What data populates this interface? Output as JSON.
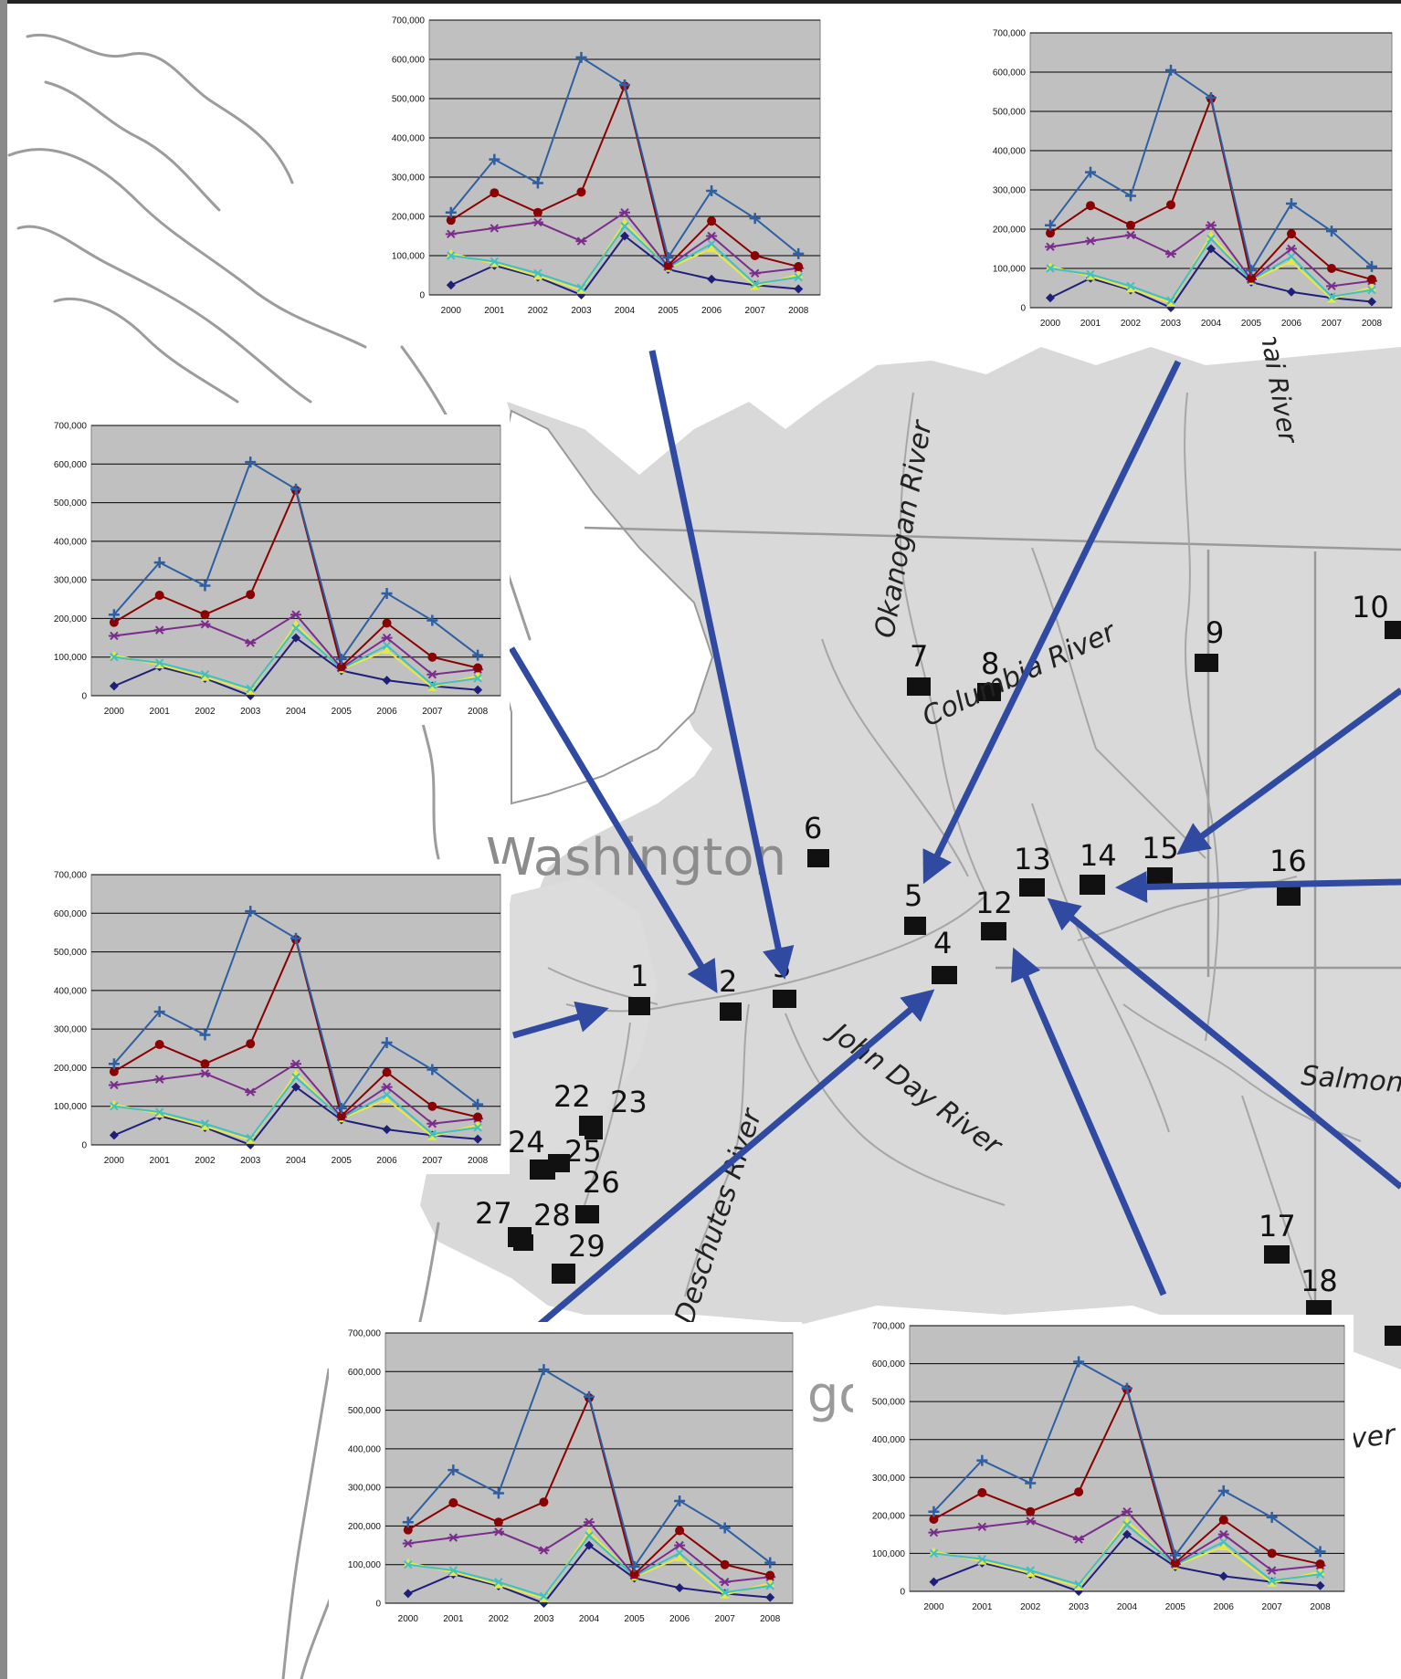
{
  "map": {
    "state_label": "Washington",
    "rivers": [
      "Okanogan River",
      "Columbia River",
      "John Day River",
      "Deschutes River",
      "Salmon River",
      "nai River"
    ],
    "partial_labels": [
      "go",
      "ver"
    ],
    "site_numbers": [
      "1",
      "2",
      "3",
      "4",
      "5",
      "6",
      "7",
      "8",
      "9",
      "10",
      "12",
      "13",
      "14",
      "15",
      "16",
      "17",
      "18",
      "22",
      "23",
      "24",
      "25",
      "26",
      "27",
      "28",
      "29"
    ],
    "colors": {
      "land": "#d9d9d9",
      "water": "#ffffff",
      "coast": "#8c8c8c",
      "arrow": "#2f4aa0",
      "marker": "#111111"
    }
  },
  "chart_template": {
    "type": "line",
    "categories": [
      "2000",
      "2001",
      "2002",
      "2003",
      "2004",
      "2005",
      "2006",
      "2007",
      "2008"
    ],
    "y_ticks": [
      "0",
      "100,000",
      "200,000",
      "300,000",
      "400,000",
      "500,000",
      "600,000",
      "700,000"
    ],
    "ylim": [
      0,
      700000
    ],
    "grid": true,
    "plot_background": "#c0c0c0",
    "series": [
      {
        "color": "#2e5fa3",
        "marker": "plus",
        "values": [
          210000,
          345000,
          285000,
          605000,
          535000,
          95000,
          265000,
          195000,
          105000
        ]
      },
      {
        "color": "#8b0000",
        "marker": "circle",
        "values": [
          190000,
          260000,
          210000,
          262000,
          532000,
          75000,
          188000,
          100000,
          72000
        ]
      },
      {
        "color": "#7b2d8b",
        "marker": "star",
        "values": [
          155000,
          170000,
          185000,
          137000,
          210000,
          72000,
          150000,
          55000,
          68000
        ]
      },
      {
        "color": "#40c0c0",
        "marker": "x",
        "values": [
          100000,
          85000,
          55000,
          18000,
          175000,
          70000,
          130000,
          28000,
          45000
        ]
      },
      {
        "color": "#e8e840",
        "marker": "triangle",
        "values": [
          105000,
          80000,
          48000,
          12000,
          185000,
          68000,
          118000,
          22000,
          52000
        ]
      },
      {
        "color": "#1f1f7a",
        "marker": "diamond",
        "values": [
          25000,
          75000,
          45000,
          0,
          150000,
          65000,
          40000,
          25000,
          15000
        ]
      }
    ]
  },
  "chart_data": [
    {
      "type": "line",
      "categories": [
        "2000",
        "2001",
        "2002",
        "2003",
        "2004",
        "2005",
        "2006",
        "2007",
        "2008"
      ],
      "ylim": [
        0,
        700000
      ],
      "series": [
        {
          "values": [
            210000,
            345000,
            285000,
            605000,
            535000,
            95000,
            265000,
            195000,
            105000
          ]
        },
        {
          "values": [
            190000,
            260000,
            210000,
            262000,
            532000,
            75000,
            188000,
            100000,
            72000
          ]
        },
        {
          "values": [
            155000,
            170000,
            185000,
            137000,
            210000,
            72000,
            150000,
            55000,
            68000
          ]
        },
        {
          "values": [
            100000,
            85000,
            55000,
            18000,
            175000,
            70000,
            130000,
            28000,
            45000
          ]
        },
        {
          "values": [
            105000,
            80000,
            48000,
            12000,
            185000,
            68000,
            118000,
            22000,
            52000
          ]
        },
        {
          "values": [
            25000,
            75000,
            45000,
            0,
            150000,
            65000,
            40000,
            25000,
            15000
          ]
        }
      ]
    },
    {
      "type": "line",
      "categories": [
        "2000",
        "2001",
        "2002",
        "2003",
        "2004",
        "2005",
        "2006",
        "2007",
        "2008"
      ],
      "ylim": [
        0,
        700000
      ],
      "series": [
        {
          "values": [
            210000,
            345000,
            285000,
            605000,
            535000,
            95000,
            265000,
            195000,
            105000
          ]
        },
        {
          "values": [
            190000,
            260000,
            210000,
            262000,
            532000,
            75000,
            188000,
            100000,
            72000
          ]
        },
        {
          "values": [
            155000,
            170000,
            185000,
            137000,
            210000,
            72000,
            150000,
            55000,
            68000
          ]
        },
        {
          "values": [
            100000,
            85000,
            55000,
            18000,
            175000,
            70000,
            130000,
            28000,
            45000
          ]
        },
        {
          "values": [
            105000,
            80000,
            48000,
            12000,
            185000,
            68000,
            118000,
            22000,
            52000
          ]
        },
        {
          "values": [
            25000,
            75000,
            45000,
            0,
            150000,
            65000,
            40000,
            25000,
            15000
          ]
        }
      ]
    },
    {
      "type": "line",
      "categories": [
        "2000",
        "2001",
        "2002",
        "2003",
        "2004",
        "2005",
        "2006",
        "2007",
        "2008"
      ],
      "ylim": [
        0,
        700000
      ],
      "series": [
        {
          "values": [
            210000,
            345000,
            285000,
            605000,
            535000,
            95000,
            265000,
            195000,
            105000
          ]
        },
        {
          "values": [
            190000,
            260000,
            210000,
            262000,
            532000,
            75000,
            188000,
            100000,
            72000
          ]
        },
        {
          "values": [
            155000,
            170000,
            185000,
            137000,
            210000,
            72000,
            150000,
            55000,
            68000
          ]
        },
        {
          "values": [
            100000,
            85000,
            55000,
            18000,
            175000,
            70000,
            130000,
            28000,
            45000
          ]
        },
        {
          "values": [
            105000,
            80000,
            48000,
            12000,
            185000,
            68000,
            118000,
            22000,
            52000
          ]
        },
        {
          "values": [
            25000,
            75000,
            45000,
            0,
            150000,
            65000,
            40000,
            25000,
            15000
          ]
        }
      ]
    },
    {
      "type": "line",
      "categories": [
        "2000",
        "2001",
        "2002",
        "2003",
        "2004",
        "2005",
        "2006",
        "2007",
        "2008"
      ],
      "ylim": [
        0,
        700000
      ],
      "series": [
        {
          "values": [
            210000,
            345000,
            285000,
            605000,
            535000,
            95000,
            265000,
            195000,
            105000
          ]
        },
        {
          "values": [
            190000,
            260000,
            210000,
            262000,
            532000,
            75000,
            188000,
            100000,
            72000
          ]
        },
        {
          "values": [
            155000,
            170000,
            185000,
            137000,
            210000,
            72000,
            150000,
            55000,
            68000
          ]
        },
        {
          "values": [
            100000,
            85000,
            55000,
            18000,
            175000,
            70000,
            130000,
            28000,
            45000
          ]
        },
        {
          "values": [
            105000,
            80000,
            48000,
            12000,
            185000,
            68000,
            118000,
            22000,
            52000
          ]
        },
        {
          "values": [
            25000,
            75000,
            45000,
            0,
            150000,
            65000,
            40000,
            25000,
            15000
          ]
        }
      ]
    },
    {
      "type": "line",
      "categories": [
        "2000",
        "2001",
        "2002",
        "2003",
        "2004",
        "2005",
        "2006",
        "2007",
        "2008"
      ],
      "ylim": [
        0,
        700000
      ],
      "series": [
        {
          "values": [
            210000,
            345000,
            285000,
            605000,
            535000,
            95000,
            265000,
            195000,
            105000
          ]
        },
        {
          "values": [
            190000,
            260000,
            210000,
            262000,
            532000,
            75000,
            188000,
            100000,
            72000
          ]
        },
        {
          "values": [
            155000,
            170000,
            185000,
            137000,
            210000,
            72000,
            150000,
            55000,
            68000
          ]
        },
        {
          "values": [
            100000,
            85000,
            55000,
            18000,
            175000,
            70000,
            130000,
            28000,
            45000
          ]
        },
        {
          "values": [
            105000,
            80000,
            48000,
            12000,
            185000,
            68000,
            118000,
            22000,
            52000
          ]
        },
        {
          "values": [
            25000,
            75000,
            45000,
            0,
            150000,
            65000,
            40000,
            25000,
            15000
          ]
        }
      ]
    },
    {
      "type": "line",
      "categories": [
        "2000",
        "2001",
        "2002",
        "2003",
        "2004",
        "2005",
        "2006",
        "2007",
        "2008"
      ],
      "ylim": [
        0,
        700000
      ],
      "series": [
        {
          "values": [
            210000,
            345000,
            285000,
            605000,
            535000,
            95000,
            265000,
            195000,
            105000
          ]
        },
        {
          "values": [
            190000,
            260000,
            210000,
            262000,
            532000,
            75000,
            188000,
            100000,
            72000
          ]
        },
        {
          "values": [
            155000,
            170000,
            185000,
            137000,
            210000,
            72000,
            150000,
            55000,
            68000
          ]
        },
        {
          "values": [
            100000,
            85000,
            55000,
            18000,
            175000,
            70000,
            130000,
            28000,
            45000
          ]
        },
        {
          "values": [
            105000,
            80000,
            48000,
            12000,
            185000,
            68000,
            118000,
            22000,
            52000
          ]
        },
        {
          "values": [
            25000,
            75000,
            45000,
            0,
            150000,
            65000,
            40000,
            25000,
            15000
          ]
        }
      ]
    }
  ]
}
